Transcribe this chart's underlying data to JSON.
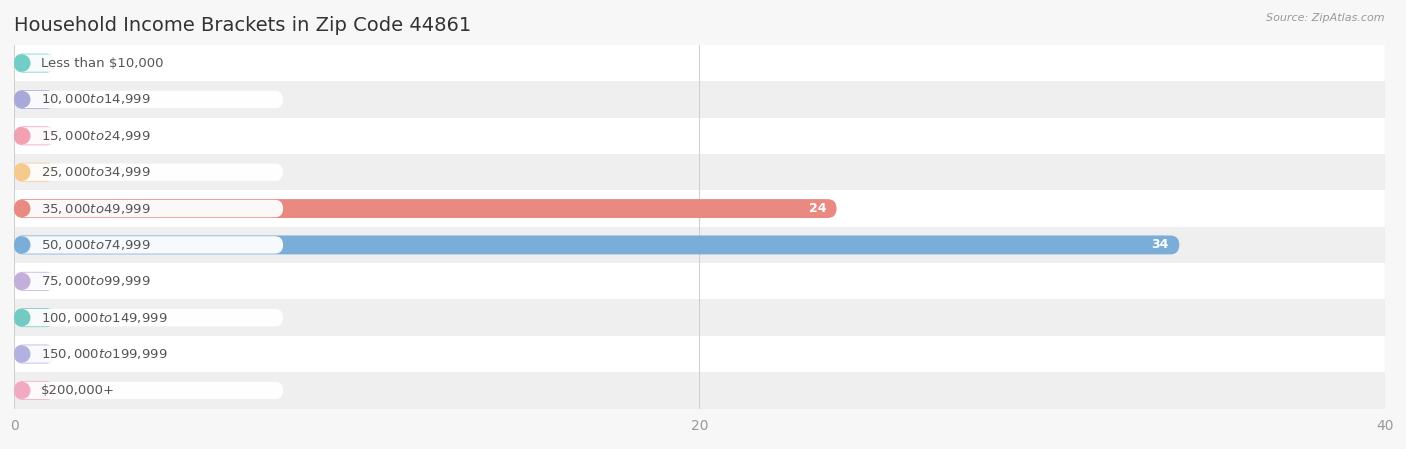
{
  "title": "Household Income Brackets in Zip Code 44861",
  "source": "Source: ZipAtlas.com",
  "categories": [
    "Less than $10,000",
    "$10,000 to $14,999",
    "$15,000 to $24,999",
    "$25,000 to $34,999",
    "$35,000 to $49,999",
    "$50,000 to $74,999",
    "$75,000 to $99,999",
    "$100,000 to $149,999",
    "$150,000 to $199,999",
    "$200,000+"
  ],
  "values": [
    0,
    0,
    0,
    0,
    24,
    34,
    0,
    0,
    0,
    0
  ],
  "bar_colors": [
    "#72cdc7",
    "#a9a9d9",
    "#f2a0b2",
    "#f6ca8c",
    "#e88a82",
    "#7aaed8",
    "#c2b0da",
    "#72cac3",
    "#b2b2e2",
    "#f2aac2"
  ],
  "xlim": [
    0,
    40
  ],
  "xticks": [
    0,
    20,
    40
  ],
  "bg_color": "#f7f7f7",
  "row_colors": [
    "#ffffff",
    "#efefef"
  ],
  "title_fontsize": 14,
  "label_fontsize": 9.5,
  "value_fontsize": 9,
  "tick_fontsize": 10
}
